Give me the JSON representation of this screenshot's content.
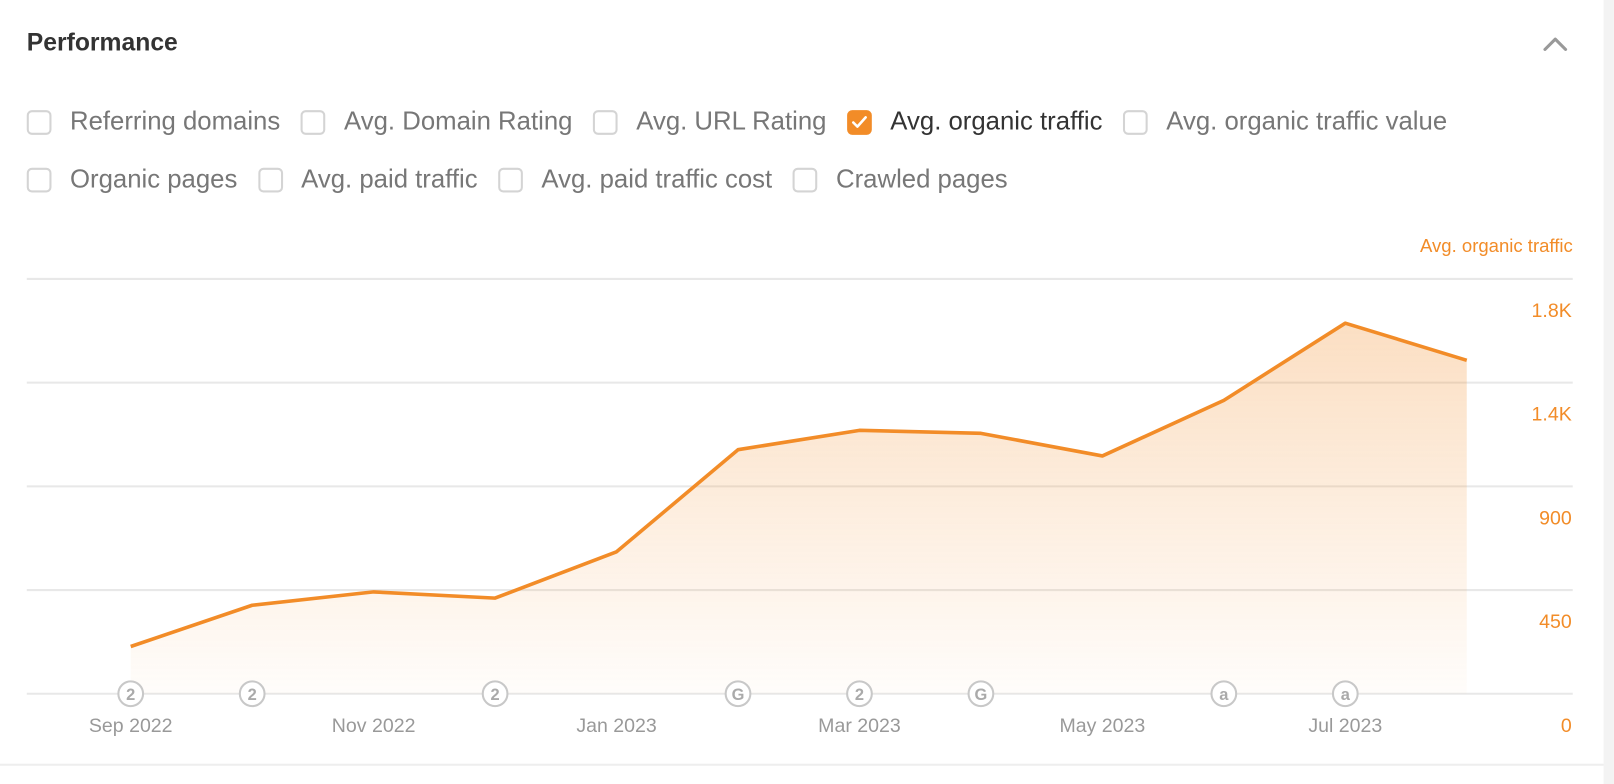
{
  "header": {
    "title": "Performance",
    "collapse_icon": "chevron-up-icon"
  },
  "metrics": [
    {
      "label": "Referring domains",
      "checked": false
    },
    {
      "label": "Avg. Domain Rating",
      "checked": false
    },
    {
      "label": "Avg. URL Rating",
      "checked": false
    },
    {
      "label": "Avg. organic traffic",
      "checked": true
    },
    {
      "label": "Avg. organic traffic value",
      "checked": false
    },
    {
      "label": "Organic pages",
      "checked": false
    },
    {
      "label": "Avg. paid traffic",
      "checked": false
    },
    {
      "label": "Avg. paid traffic cost",
      "checked": false
    },
    {
      "label": "Crawled pages",
      "checked": false
    }
  ],
  "colors": {
    "accent": "#f28c28",
    "grid": "#e8e8e8",
    "axis_text": "#999999"
  },
  "chart_data": {
    "type": "area",
    "title": "",
    "series_label": "Avg. organic traffic",
    "x": [
      "Sep 2022",
      "Oct 2022",
      "Nov 2022",
      "Dec 2022",
      "Jan 2023",
      "Feb 2023",
      "Mar 2023",
      "Apr 2023",
      "May 2023",
      "Jun 2023",
      "Jul 2023",
      "Aug 2023"
    ],
    "values": [
      205,
      384,
      442,
      415,
      616,
      1059,
      1143,
      1130,
      1032,
      1273,
      1608,
      1447
    ],
    "x_tick_labels": [
      "Sep 2022",
      "Nov 2022",
      "Jan 2023",
      "Mar 2023",
      "May 2023",
      "Jul 2023"
    ],
    "y_ticks": [
      0,
      450,
      900,
      1350,
      1800
    ],
    "y_tick_labels": [
      "0",
      "450",
      "900",
      "1.4K",
      "1.8K"
    ],
    "ylim": [
      0,
      1800
    ],
    "y_axis_side": "right",
    "grid": true,
    "annotations": [
      {
        "x": "Sep 2022",
        "label": "2"
      },
      {
        "x": "Oct 2022",
        "label": "2"
      },
      {
        "x": "Dec 2022",
        "label": "2"
      },
      {
        "x": "Feb 2023",
        "label": "G"
      },
      {
        "x": "Mar 2023",
        "label": "2"
      },
      {
        "x": "Apr 2023",
        "label": "G"
      },
      {
        "x": "Jun 2023",
        "label": "a"
      },
      {
        "x": "Jul 2023",
        "label": "a"
      }
    ]
  }
}
